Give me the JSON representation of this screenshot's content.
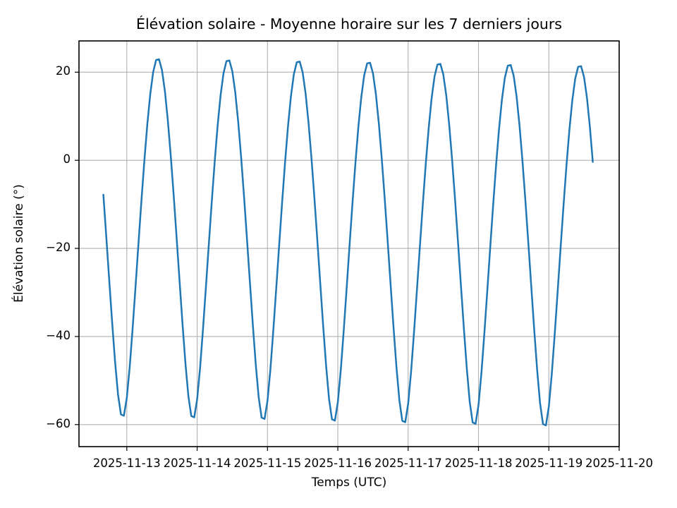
{
  "chart_data": {
    "type": "line",
    "title": "Élévation solaire - Moyenne horaire sur les 7 derniers jours",
    "xlabel": "Temps (UTC)",
    "ylabel": "Élévation solaire (°)",
    "x_tick_labels": [
      "2025-11-13",
      "2025-11-14",
      "2025-11-15",
      "2025-11-16",
      "2025-11-17",
      "2025-11-18",
      "2025-11-19",
      "2025-11-20"
    ],
    "x_tick_days": [
      0,
      1,
      2,
      3,
      4,
      5,
      6,
      7
    ],
    "y_tick_labels": [
      "20",
      "0",
      "−20",
      "−40",
      "−60"
    ],
    "y_tick_values": [
      20,
      0,
      -20,
      -40,
      -60
    ],
    "xlim_days": [
      -0.68,
      7.0
    ],
    "ylim": [
      -65.0,
      27.1
    ],
    "grid": true,
    "legend": "none",
    "background_color": "#ffffff",
    "grid_color": "#b0b0b0",
    "axis_color": "#000000",
    "line_color": "#1f77b4",
    "line_width": 2.5,
    "series": [
      {
        "name": "Élévation solaire (moyenne horaire)",
        "sampling": "hourly",
        "start_time": "2025-11-12 16:00 UTC",
        "end_time": "2025-11-19 15:00 UTC",
        "first_value_deg": -6.4,
        "last_value_deg": -3.5,
        "daily_peaks_deg": [
          23.2,
          22.9,
          22.7,
          22.4,
          22.2,
          21.9,
          21.6
        ],
        "daily_troughs_deg": [
          -58.5,
          -58.8,
          -59.2,
          -59.5,
          -59.9,
          -60.2,
          -60.6
        ],
        "model": {
          "start_hour_offset": -8,
          "end_hour_offset": 159,
          "solar_noon_day_fraction": 0.44,
          "peak_deg_at_t0": 23.3,
          "peak_deg_slope_per_day": -0.26,
          "trough_deg_at_t0": -58.45,
          "trough_deg_slope_per_day": -0.37
        }
      }
    ]
  }
}
